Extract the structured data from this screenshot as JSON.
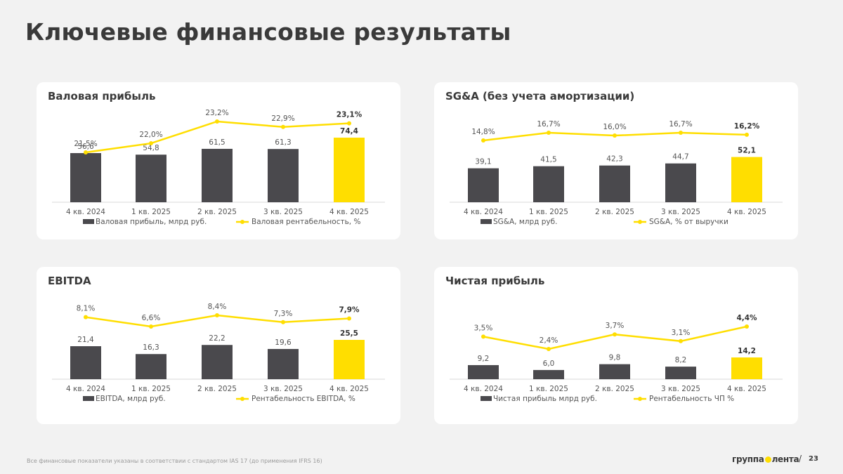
{
  "slide": {
    "title": "Ключевые финансовые результаты",
    "footnote": "Все финансовые показатели указаны в соответствии с стандартом IAS 17 (до применения IFRS 16)",
    "logo_left": "группа",
    "logo_right": "лента",
    "page_separator": "/",
    "page_number": "23"
  },
  "colors": {
    "bar": "#4a494d",
    "highlight_bar": "#ffde00",
    "line": "#ffde00",
    "background": "#f2f2f2",
    "card": "#ffffff"
  },
  "chart_data": [
    {
      "type": "bar",
      "title": "Валовая прибыль",
      "categories": [
        "4 кв. 2024",
        "1 кв. 2025",
        "2 кв. 2025",
        "3 кв. 2025",
        "4 кв. 2025"
      ],
      "bar_values": [
        56.6,
        54.8,
        61.5,
        61.3,
        74.4
      ],
      "bar_labels": [
        "56,6",
        "54,8",
        "61,5",
        "61,3",
        "74,4"
      ],
      "line_values": [
        21.5,
        22.0,
        23.2,
        22.9,
        23.1
      ],
      "line_labels": [
        "21,5%",
        "22,0%",
        "23,2%",
        "22,9%",
        "23,1%"
      ],
      "series": [
        {
          "name": "Валовая прибыль, млрд руб.",
          "kind": "bar"
        },
        {
          "name": "Валовая рентабельность, %",
          "kind": "line"
        }
      ],
      "highlight_last": true,
      "legend": "bottom"
    },
    {
      "type": "bar",
      "title": "SG&A (без учета амортизации)",
      "categories": [
        "4 кв. 2024",
        "1 кв. 2025",
        "2 кв. 2025",
        "3 кв. 2025",
        "4 кв. 2025"
      ],
      "bar_values": [
        39.1,
        41.5,
        42.3,
        44.7,
        52.1
      ],
      "bar_labels": [
        "39,1",
        "41,5",
        "42,3",
        "44,7",
        "52,1"
      ],
      "line_values": [
        14.8,
        16.7,
        16.0,
        16.7,
        16.2
      ],
      "line_labels": [
        "14,8%",
        "16,7%",
        "16,0%",
        "16,7%",
        "16,2%"
      ],
      "series": [
        {
          "name": "SG&A, млрд руб.",
          "kind": "bar"
        },
        {
          "name": "SG&A, % от выручки",
          "kind": "line"
        }
      ],
      "highlight_last": true,
      "legend": "bottom"
    },
    {
      "type": "bar",
      "title": "EBITDA",
      "categories": [
        "4 кв. 2024",
        "1 кв. 2025",
        "2 кв. 2025",
        "3 кв. 2025",
        "4 кв. 2025"
      ],
      "bar_values": [
        21.4,
        16.3,
        22.2,
        19.6,
        25.5
      ],
      "bar_labels": [
        "21,4",
        "16,3",
        "22,2",
        "19,6",
        "25,5"
      ],
      "line_values": [
        8.1,
        6.6,
        8.4,
        7.3,
        7.9
      ],
      "line_labels": [
        "8,1%",
        "6,6%",
        "8,4%",
        "7,3%",
        "7,9%"
      ],
      "series": [
        {
          "name": "EBITDA, млрд руб.",
          "kind": "bar"
        },
        {
          "name": "Рентабельность EBITDA, %",
          "kind": "line"
        }
      ],
      "highlight_last": true,
      "legend": "bottom"
    },
    {
      "type": "bar",
      "title": "Чистая прибыль",
      "categories": [
        "4 кв. 2024",
        "1 кв. 2025",
        "2 кв. 2025",
        "3 кв. 2025",
        "4 кв. 2025"
      ],
      "bar_values": [
        9.2,
        6.0,
        9.8,
        8.2,
        14.2
      ],
      "bar_labels": [
        "9,2",
        "6,0",
        "9,8",
        "8,2",
        "14,2"
      ],
      "line_values": [
        3.5,
        2.4,
        3.7,
        3.1,
        4.4
      ],
      "line_labels": [
        "3,5%",
        "2,4%",
        "3,7%",
        "3,1%",
        "4,4%"
      ],
      "series": [
        {
          "name": "Чистая прибыль млрд руб.",
          "kind": "bar"
        },
        {
          "name": "Рентабельность ЧП %",
          "kind": "line"
        }
      ],
      "highlight_last": true,
      "legend": "bottom"
    }
  ]
}
